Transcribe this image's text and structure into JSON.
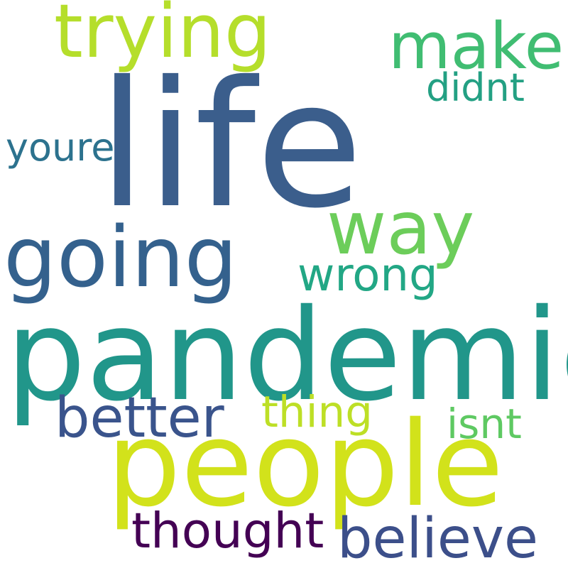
{
  "words": [
    {
      "text": "life",
      "color": "#3b5e8c"
    },
    {
      "text": "pandemic",
      "color": "#21968a"
    },
    {
      "text": "people",
      "color": "#d2e21b"
    },
    {
      "text": "going",
      "color": "#34618d"
    },
    {
      "text": "trying",
      "color": "#b5de2b"
    },
    {
      "text": "way",
      "color": "#6ccd5a"
    },
    {
      "text": "make",
      "color": "#40bd72"
    },
    {
      "text": "better",
      "color": "#3a548c"
    },
    {
      "text": "believe",
      "color": "#3c4f8a"
    },
    {
      "text": "thought",
      "color": "#440154"
    },
    {
      "text": "wrong",
      "color": "#22a785"
    },
    {
      "text": "thing",
      "color": "#bddf26"
    },
    {
      "text": "isnt",
      "color": "#5ec962"
    },
    {
      "text": "didnt",
      "color": "#23a083"
    },
    {
      "text": "youre",
      "color": "#2c728e"
    }
  ]
}
